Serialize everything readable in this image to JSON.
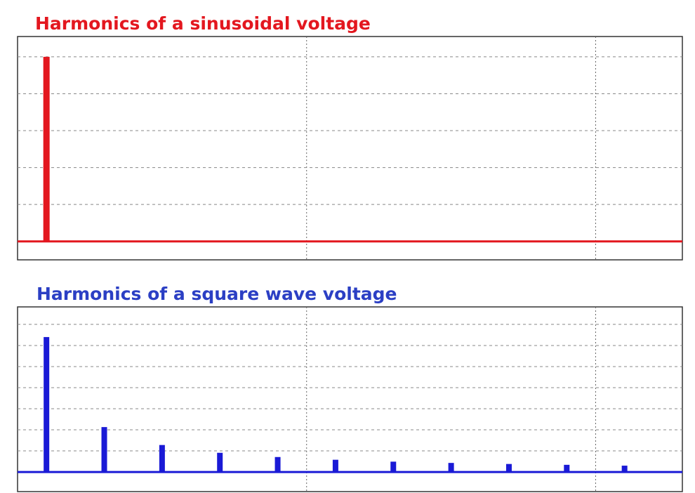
{
  "chart_data": [
    {
      "type": "bar",
      "title": "Harmonics of a sinusoidal voltage",
      "color": "#e3171f",
      "x": [
        1
      ],
      "values": [
        5
      ],
      "xlim": [
        0,
        23
      ],
      "xticks": [
        10,
        20
      ],
      "ylim": [
        -0.5,
        5.55
      ],
      "yticks": [
        0,
        1,
        2,
        3,
        4,
        5
      ],
      "grid": true
    },
    {
      "type": "bar",
      "title": "Harmonics of a square wave voltage",
      "color": "#1a1ad6",
      "x": [
        1,
        3,
        5,
        7,
        9,
        11,
        13,
        15,
        17,
        19,
        21
      ],
      "values": [
        6.4,
        2.13,
        1.28,
        0.91,
        0.71,
        0.58,
        0.49,
        0.43,
        0.38,
        0.34,
        0.3
      ],
      "xlim": [
        0,
        23
      ],
      "xticks": [
        10,
        20
      ],
      "ylim": [
        -0.93,
        7.83
      ],
      "yticks": [
        0,
        1,
        2,
        3,
        4,
        5,
        6,
        7
      ],
      "grid": true
    }
  ]
}
